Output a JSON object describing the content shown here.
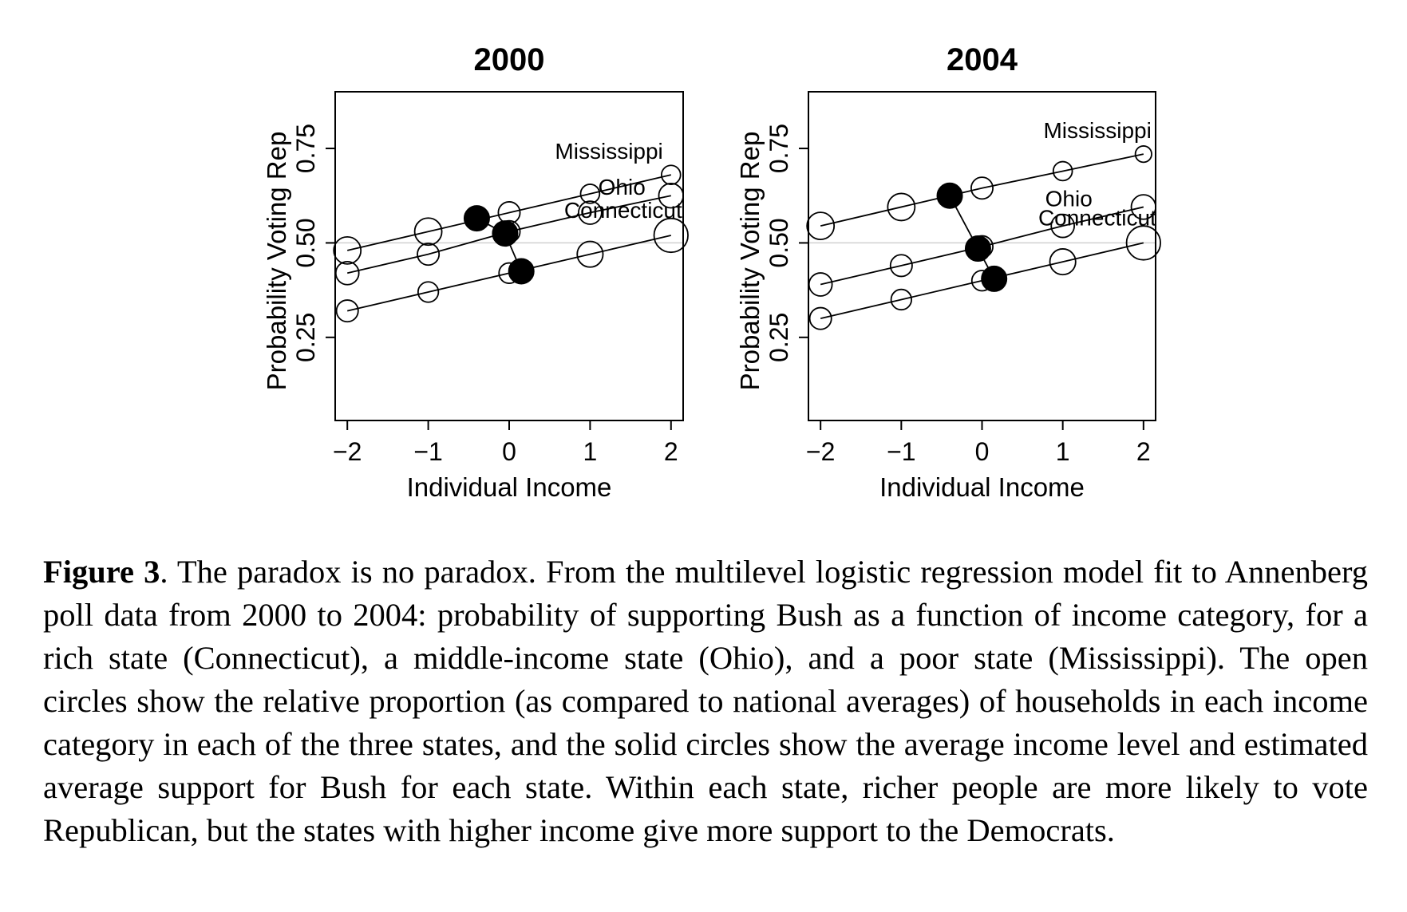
{
  "chart_data": [
    {
      "type": "scatter",
      "title": "2000",
      "xlabel": "Individual Income",
      "ylabel": "Probability Voting Rep",
      "xlim": [
        -2.15,
        2.15
      ],
      "ylim": [
        0.03,
        0.9
      ],
      "xticks": [
        -2,
        -1,
        0,
        1,
        2
      ],
      "xtick_labels": [
        "−2",
        "−1",
        "0",
        "1",
        "2"
      ],
      "yticks": [
        0.25,
        0.5,
        0.75
      ],
      "ytick_labels": [
        "0.25",
        "0.50",
        "0.75"
      ],
      "reference_line": 0.5,
      "series": [
        {
          "name": "Mississippi",
          "x": [
            -2,
            -1,
            0,
            1,
            2
          ],
          "y": [
            0.48,
            0.53,
            0.58,
            0.63,
            0.68
          ],
          "sizes": [
            1.0,
            1.0,
            0.8,
            0.7,
            0.7
          ],
          "mean": {
            "x": -0.4,
            "y": 0.565
          }
        },
        {
          "name": "Ohio",
          "x": [
            -2,
            -1,
            0,
            1,
            2
          ],
          "y": [
            0.42,
            0.47,
            0.53,
            0.58,
            0.625
          ],
          "sizes": [
            0.85,
            0.8,
            0.8,
            0.85,
            0.9
          ],
          "mean": {
            "x": -0.05,
            "y": 0.525
          }
        },
        {
          "name": "Connecticut",
          "x": [
            -2,
            -1,
            0,
            1,
            2
          ],
          "y": [
            0.32,
            0.37,
            0.42,
            0.47,
            0.52
          ],
          "sizes": [
            0.8,
            0.75,
            0.75,
            0.95,
            1.25
          ],
          "mean": {
            "x": 0.15,
            "y": 0.425
          }
        }
      ]
    },
    {
      "type": "scatter",
      "title": "2004",
      "xlabel": "Individual Income",
      "ylabel": "Probability Voting Rep",
      "xlim": [
        -2.15,
        2.15
      ],
      "ylim": [
        0.03,
        0.9
      ],
      "xticks": [
        -2,
        -1,
        0,
        1,
        2
      ],
      "xtick_labels": [
        "−2",
        "−1",
        "0",
        "1",
        "2"
      ],
      "yticks": [
        0.25,
        0.5,
        0.75
      ],
      "ytick_labels": [
        "0.25",
        "0.50",
        "0.75"
      ],
      "reference_line": 0.5,
      "series": [
        {
          "name": "Mississippi",
          "x": [
            -2,
            -1,
            0,
            1,
            2
          ],
          "y": [
            0.545,
            0.595,
            0.645,
            0.69,
            0.735
          ],
          "sizes": [
            1.0,
            1.0,
            0.8,
            0.7,
            0.6
          ],
          "mean": {
            "x": -0.4,
            "y": 0.625
          }
        },
        {
          "name": "Ohio",
          "x": [
            -2,
            -1,
            0,
            1,
            2
          ],
          "y": [
            0.39,
            0.44,
            0.49,
            0.545,
            0.595
          ],
          "sizes": [
            0.85,
            0.8,
            0.8,
            0.85,
            0.9
          ],
          "mean": {
            "x": -0.05,
            "y": 0.485
          }
        },
        {
          "name": "Connecticut",
          "x": [
            -2,
            -1,
            0,
            1,
            2
          ],
          "y": [
            0.3,
            0.35,
            0.4,
            0.45,
            0.5
          ],
          "sizes": [
            0.8,
            0.75,
            0.75,
            0.95,
            1.25
          ],
          "mean": {
            "x": 0.15,
            "y": 0.405
          }
        }
      ]
    }
  ],
  "caption": {
    "label": "Figure 3",
    "text": ". The paradox is no paradox. From the multilevel logistic regression model fit to Annenberg poll data from 2000 to 2004: probability of supporting Bush as a function of income category, for a rich state (Connecticut), a middle-income state (Ohio), and a poor state (Mississippi). The open circles show the relative proportion (as compared to national averages) of households in each income category in each of the three states, and the solid circles show the average income level and estimated average support for Bush for each state. Within each state, richer people are more likely to vote Republican, but the states with higher income give more support to the Democrats."
  }
}
